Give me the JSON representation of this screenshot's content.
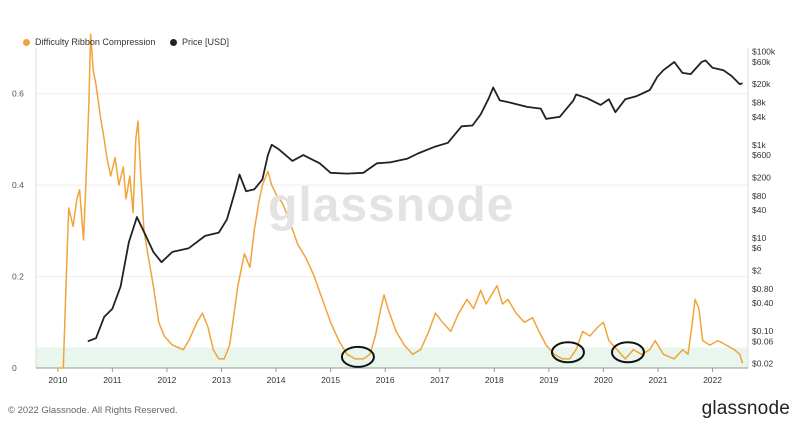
{
  "legend": [
    {
      "label": "Difficulty Ribbon Compression",
      "color": "#f2a33a"
    },
    {
      "label": "Price [USD]",
      "color": "#222222"
    }
  ],
  "watermark": "glassnode",
  "footer": {
    "copyright": "© 2022 Glassnode. All Rights Reserved.",
    "brand": "glassnode"
  },
  "chart_data": {
    "type": "line",
    "x_ticks": [
      "2010",
      "2011",
      "2012",
      "2013",
      "2014",
      "2015",
      "2016",
      "2017",
      "2018",
      "2019",
      "2020",
      "2021",
      "2022"
    ],
    "y_left_ticks": [
      0,
      0.2,
      0.4,
      0.6
    ],
    "y_left_range": [
      0,
      0.7
    ],
    "y_right_ticks": [
      "$100k",
      "$60k",
      "$20k",
      "$8k",
      "$4k",
      "$1k",
      "$600",
      "$200",
      "$80",
      "$40",
      "$10",
      "$6",
      "$2",
      "$0.80",
      "$0.40",
      "$0.10",
      "$0.06",
      "$0.02"
    ],
    "y_right_scale": "log",
    "y_right_range": [
      0.016,
      120000
    ],
    "low_band": {
      "from": 0,
      "to": 0.045,
      "color": "#e8f6ee"
    },
    "highlights": [
      {
        "x": 2015.5,
        "y": 0.02
      },
      {
        "x": 2019.35,
        "y": 0.03
      },
      {
        "x": 2020.45,
        "y": 0.03
      }
    ],
    "series": [
      {
        "name": "Difficulty Ribbon Compression",
        "axis": "left",
        "color": "#f2a33a",
        "points": [
          [
            2010.0,
            0.0
          ],
          [
            2010.1,
            0.0
          ],
          [
            2010.15,
            0.18
          ],
          [
            2010.2,
            0.35
          ],
          [
            2010.28,
            0.31
          ],
          [
            2010.35,
            0.37
          ],
          [
            2010.4,
            0.39
          ],
          [
            2010.47,
            0.28
          ],
          [
            2010.52,
            0.42
          ],
          [
            2010.57,
            0.58
          ],
          [
            2010.6,
            0.73
          ],
          [
            2010.65,
            0.65
          ],
          [
            2010.7,
            0.62
          ],
          [
            2010.78,
            0.55
          ],
          [
            2010.85,
            0.5
          ],
          [
            2010.9,
            0.46
          ],
          [
            2010.97,
            0.42
          ],
          [
            2011.05,
            0.46
          ],
          [
            2011.12,
            0.4
          ],
          [
            2011.2,
            0.44
          ],
          [
            2011.25,
            0.37
          ],
          [
            2011.32,
            0.42
          ],
          [
            2011.38,
            0.34
          ],
          [
            2011.43,
            0.5
          ],
          [
            2011.47,
            0.54
          ],
          [
            2011.52,
            0.42
          ],
          [
            2011.58,
            0.3
          ],
          [
            2011.65,
            0.25
          ],
          [
            2011.75,
            0.18
          ],
          [
            2011.85,
            0.1
          ],
          [
            2011.95,
            0.07
          ],
          [
            2012.1,
            0.05
          ],
          [
            2012.3,
            0.04
          ],
          [
            2012.4,
            0.06
          ],
          [
            2012.55,
            0.1
          ],
          [
            2012.65,
            0.12
          ],
          [
            2012.75,
            0.09
          ],
          [
            2012.85,
            0.04
          ],
          [
            2012.95,
            0.02
          ],
          [
            2013.05,
            0.02
          ],
          [
            2013.15,
            0.05
          ],
          [
            2013.3,
            0.18
          ],
          [
            2013.42,
            0.25
          ],
          [
            2013.52,
            0.22
          ],
          [
            2013.6,
            0.3
          ],
          [
            2013.68,
            0.36
          ],
          [
            2013.75,
            0.4
          ],
          [
            2013.85,
            0.43
          ],
          [
            2013.92,
            0.4
          ],
          [
            2014.0,
            0.38
          ],
          [
            2014.12,
            0.36
          ],
          [
            2014.25,
            0.32
          ],
          [
            2014.4,
            0.27
          ],
          [
            2014.55,
            0.24
          ],
          [
            2014.7,
            0.2
          ],
          [
            2014.85,
            0.15
          ],
          [
            2015.0,
            0.1
          ],
          [
            2015.15,
            0.06
          ],
          [
            2015.3,
            0.03
          ],
          [
            2015.45,
            0.02
          ],
          [
            2015.6,
            0.02
          ],
          [
            2015.72,
            0.03
          ],
          [
            2015.82,
            0.07
          ],
          [
            2015.92,
            0.13
          ],
          [
            2015.98,
            0.16
          ],
          [
            2016.05,
            0.13
          ],
          [
            2016.2,
            0.08
          ],
          [
            2016.35,
            0.05
          ],
          [
            2016.5,
            0.03
          ],
          [
            2016.65,
            0.04
          ],
          [
            2016.8,
            0.08
          ],
          [
            2016.92,
            0.12
          ],
          [
            2017.05,
            0.1
          ],
          [
            2017.2,
            0.08
          ],
          [
            2017.35,
            0.12
          ],
          [
            2017.5,
            0.15
          ],
          [
            2017.62,
            0.13
          ],
          [
            2017.75,
            0.17
          ],
          [
            2017.85,
            0.14
          ],
          [
            2017.95,
            0.16
          ],
          [
            2018.05,
            0.18
          ],
          [
            2018.15,
            0.14
          ],
          [
            2018.25,
            0.15
          ],
          [
            2018.4,
            0.12
          ],
          [
            2018.55,
            0.1
          ],
          [
            2018.7,
            0.11
          ],
          [
            2018.82,
            0.08
          ],
          [
            2018.95,
            0.05
          ],
          [
            2019.1,
            0.03
          ],
          [
            2019.25,
            0.02
          ],
          [
            2019.38,
            0.02
          ],
          [
            2019.5,
            0.04
          ],
          [
            2019.62,
            0.08
          ],
          [
            2019.75,
            0.07
          ],
          [
            2019.9,
            0.09
          ],
          [
            2020.0,
            0.1
          ],
          [
            2020.1,
            0.06
          ],
          [
            2020.25,
            0.04
          ],
          [
            2020.4,
            0.02
          ],
          [
            2020.55,
            0.04
          ],
          [
            2020.7,
            0.03
          ],
          [
            2020.85,
            0.04
          ],
          [
            2020.95,
            0.06
          ],
          [
            2021.1,
            0.03
          ],
          [
            2021.3,
            0.02
          ],
          [
            2021.45,
            0.04
          ],
          [
            2021.55,
            0.03
          ],
          [
            2021.62,
            0.09
          ],
          [
            2021.68,
            0.15
          ],
          [
            2021.75,
            0.13
          ],
          [
            2021.82,
            0.06
          ],
          [
            2021.95,
            0.05
          ],
          [
            2022.1,
            0.06
          ],
          [
            2022.25,
            0.05
          ],
          [
            2022.4,
            0.04
          ],
          [
            2022.5,
            0.03
          ],
          [
            2022.55,
            0.01
          ]
        ]
      },
      {
        "name": "Price [USD]",
        "axis": "right",
        "color": "#222222",
        "points": [
          [
            2010.55,
            0.06
          ],
          [
            2010.7,
            0.07
          ],
          [
            2010.85,
            0.2
          ],
          [
            2011.0,
            0.3
          ],
          [
            2011.15,
            0.9
          ],
          [
            2011.3,
            8
          ],
          [
            2011.45,
            28
          ],
          [
            2011.6,
            12
          ],
          [
            2011.75,
            5
          ],
          [
            2011.9,
            3
          ],
          [
            2012.1,
            5
          ],
          [
            2012.4,
            6
          ],
          [
            2012.7,
            11
          ],
          [
            2012.95,
            13
          ],
          [
            2013.1,
            25
          ],
          [
            2013.25,
            100
          ],
          [
            2013.33,
            230
          ],
          [
            2013.45,
            100
          ],
          [
            2013.6,
            110
          ],
          [
            2013.75,
            180
          ],
          [
            2013.85,
            600
          ],
          [
            2013.92,
            1000
          ],
          [
            2014.05,
            800
          ],
          [
            2014.3,
            450
          ],
          [
            2014.5,
            600
          ],
          [
            2014.8,
            400
          ],
          [
            2015.0,
            250
          ],
          [
            2015.3,
            240
          ],
          [
            2015.6,
            250
          ],
          [
            2015.85,
            400
          ],
          [
            2016.1,
            420
          ],
          [
            2016.4,
            500
          ],
          [
            2016.6,
            650
          ],
          [
            2016.9,
            900
          ],
          [
            2017.15,
            1100
          ],
          [
            2017.4,
            2500
          ],
          [
            2017.6,
            2600
          ],
          [
            2017.75,
            4500
          ],
          [
            2017.9,
            10000
          ],
          [
            2017.98,
            17000
          ],
          [
            2018.1,
            9000
          ],
          [
            2018.3,
            8000
          ],
          [
            2018.6,
            6500
          ],
          [
            2018.85,
            6000
          ],
          [
            2018.95,
            3600
          ],
          [
            2019.2,
            4000
          ],
          [
            2019.45,
            9000
          ],
          [
            2019.5,
            12000
          ],
          [
            2019.7,
            10000
          ],
          [
            2019.95,
            7200
          ],
          [
            2020.1,
            9500
          ],
          [
            2020.22,
            5000
          ],
          [
            2020.4,
            9500
          ],
          [
            2020.6,
            11000
          ],
          [
            2020.85,
            15000
          ],
          [
            2020.99,
            29000
          ],
          [
            2021.1,
            40000
          ],
          [
            2021.3,
            60000
          ],
          [
            2021.45,
            35000
          ],
          [
            2021.6,
            33000
          ],
          [
            2021.8,
            60000
          ],
          [
            2021.87,
            65000
          ],
          [
            2022.0,
            45000
          ],
          [
            2022.2,
            40000
          ],
          [
            2022.35,
            30000
          ],
          [
            2022.5,
            20000
          ],
          [
            2022.55,
            21000
          ]
        ]
      }
    ]
  }
}
